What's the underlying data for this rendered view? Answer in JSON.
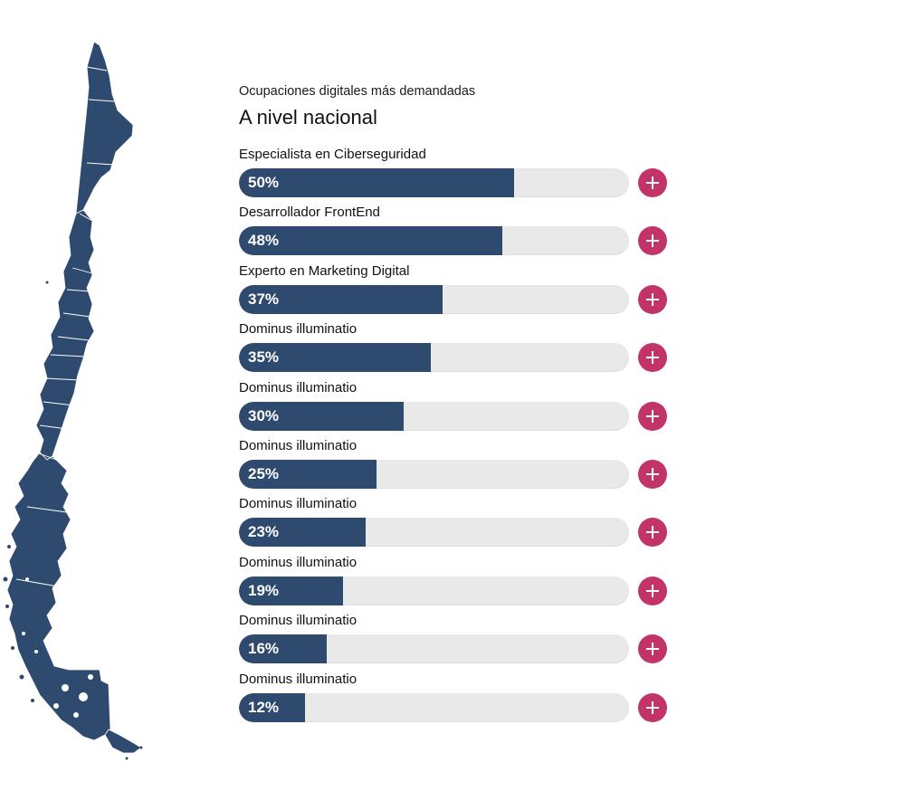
{
  "header": {
    "subtitle": "Ocupaciones digitales más demandadas",
    "title": "A nivel nacional"
  },
  "colors": {
    "bar_fill": "#2f4a6f",
    "bar_track": "#e9e9e9",
    "button": "#c2336a",
    "map_fill": "#2f4a6f"
  },
  "icons": {
    "expand": "plus-icon",
    "map": "chile-map-icon"
  },
  "chart_data": {
    "type": "bar",
    "orientation": "horizontal",
    "categories": [
      "Especialista en Ciberseguridad",
      "Desarrollador FrontEnd",
      "Experto en Marketing Digital",
      "Dominus illuminatio",
      "Dominus illuminatio",
      "Dominus illuminatio",
      "Dominus illuminatio",
      "Dominus illuminatio",
      "Dominus illuminatio",
      "Dominus illuminatio"
    ],
    "values": [
      50,
      48,
      37,
      35,
      30,
      25,
      23,
      19,
      16,
      12
    ],
    "value_labels": [
      "50%",
      "48%",
      "37%",
      "35%",
      "30%",
      "25%",
      "23%",
      "19%",
      "16%",
      "12%"
    ],
    "title": "A nivel nacional",
    "subtitle": "Ocupaciones digitales más demandadas"
  }
}
